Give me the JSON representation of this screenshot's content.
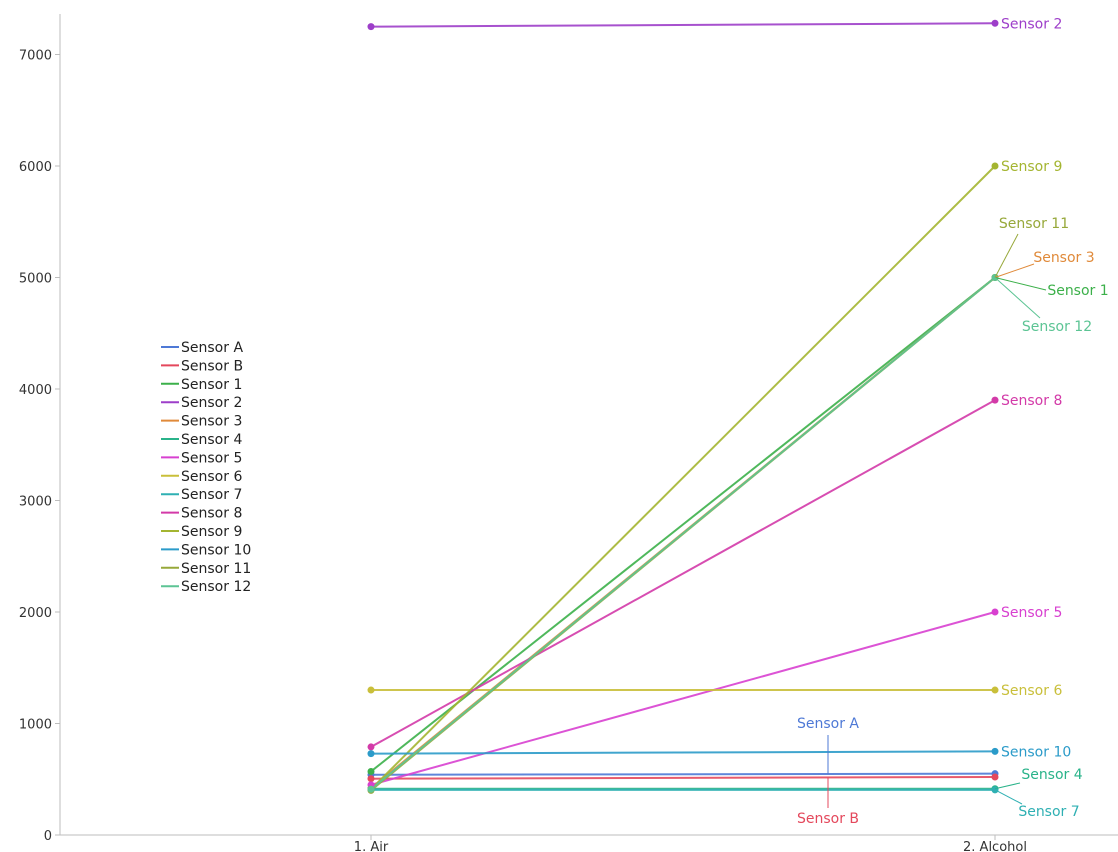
{
  "chart_data": {
    "type": "line",
    "x": [
      "1. Air",
      "2. Alcohol"
    ],
    "ylim": [
      0,
      7500
    ],
    "yticks": [
      0,
      1000,
      2000,
      3000,
      4000,
      5000,
      6000,
      7000
    ],
    "legend_position": "left",
    "series": [
      {
        "name": "Sensor A",
        "color": "#4e79d6",
        "values": [
          540,
          550
        ]
      },
      {
        "name": "Sensor B",
        "color": "#e4485c",
        "values": [
          505,
          520
        ]
      },
      {
        "name": "Sensor 1",
        "color": "#3cb04a",
        "values": [
          570,
          5000
        ]
      },
      {
        "name": "Sensor 2",
        "color": "#9d3ec9",
        "values": [
          7250,
          7280
        ]
      },
      {
        "name": "Sensor 3",
        "color": "#e08a3a",
        "values": [
          420,
          5000
        ]
      },
      {
        "name": "Sensor 4",
        "color": "#2ab38a",
        "values": [
          415,
          415
        ]
      },
      {
        "name": "Sensor 5",
        "color": "#d840d0",
        "values": [
          450,
          2000
        ]
      },
      {
        "name": "Sensor 6",
        "color": "#c9bf3a",
        "values": [
          1300,
          1300
        ]
      },
      {
        "name": "Sensor 7",
        "color": "#2fb0b3",
        "values": [
          405,
          405
        ]
      },
      {
        "name": "Sensor 8",
        "color": "#d33aa8",
        "values": [
          790,
          3900
        ]
      },
      {
        "name": "Sensor 9",
        "color": "#a4b531",
        "values": [
          410,
          6000
        ]
      },
      {
        "name": "Sensor 10",
        "color": "#2b9bc9",
        "values": [
          730,
          750
        ]
      },
      {
        "name": "Sensor 11",
        "color": "#97a83a",
        "values": [
          400,
          5000
        ]
      },
      {
        "name": "Sensor 12",
        "color": "#5cc494",
        "values": [
          410,
          5000
        ]
      }
    ],
    "end_labels": [
      {
        "text": "Sensor 2",
        "series": "Sensor 2"
      },
      {
        "text": "Sensor 9",
        "series": "Sensor 9"
      },
      {
        "text": "Sensor 8",
        "series": "Sensor 8"
      },
      {
        "text": "Sensor 5",
        "series": "Sensor 5"
      },
      {
        "text": "Sensor 6",
        "series": "Sensor 6"
      },
      {
        "text": "Sensor 10",
        "series": "Sensor 10"
      }
    ],
    "callouts": [
      {
        "text": "Sensor 11",
        "series": "Sensor 11"
      },
      {
        "text": "Sensor 3",
        "series": "Sensor 3"
      },
      {
        "text": "Sensor 1",
        "series": "Sensor 1"
      },
      {
        "text": "Sensor 12",
        "series": "Sensor 12"
      },
      {
        "text": "Sensor 4",
        "series": "Sensor 4"
      },
      {
        "text": "Sensor 7",
        "series": "Sensor 7"
      },
      {
        "text": "Sensor A",
        "series": "Sensor A"
      },
      {
        "text": "Sensor B",
        "series": "Sensor B"
      }
    ]
  }
}
